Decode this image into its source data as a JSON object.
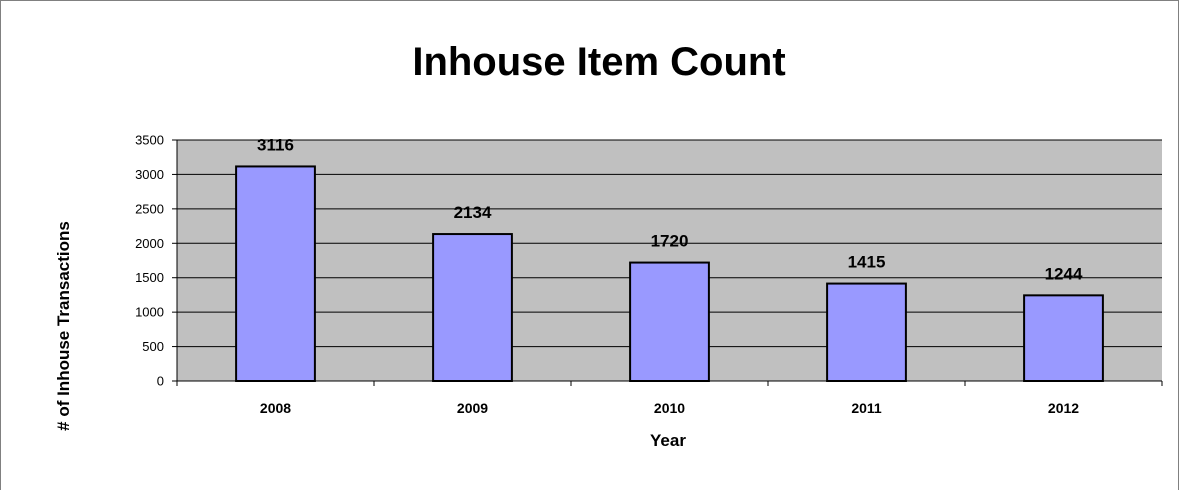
{
  "chart_data": {
    "type": "bar",
    "title": "Inhouse Item Count",
    "xlabel": "Year",
    "ylabel": "# of Inhouse Transactions",
    "categories": [
      "2008",
      "2009",
      "2010",
      "2011",
      "2012"
    ],
    "values": [
      3116,
      2134,
      1720,
      1415,
      1244
    ],
    "ylim": [
      0,
      3500
    ],
    "yticks": [
      "0",
      "500",
      "1000",
      "1500",
      "2000",
      "2500",
      "3000",
      "3500"
    ],
    "data_labels": [
      "3116",
      "2134",
      "1720",
      "1415",
      "1244"
    ],
    "grid": true,
    "legend": "none",
    "colors": {
      "bar_fill": "#9999ff",
      "bar_stroke": "#000000",
      "plot_background": "#c0c0c0",
      "gridline": "#000000"
    }
  }
}
